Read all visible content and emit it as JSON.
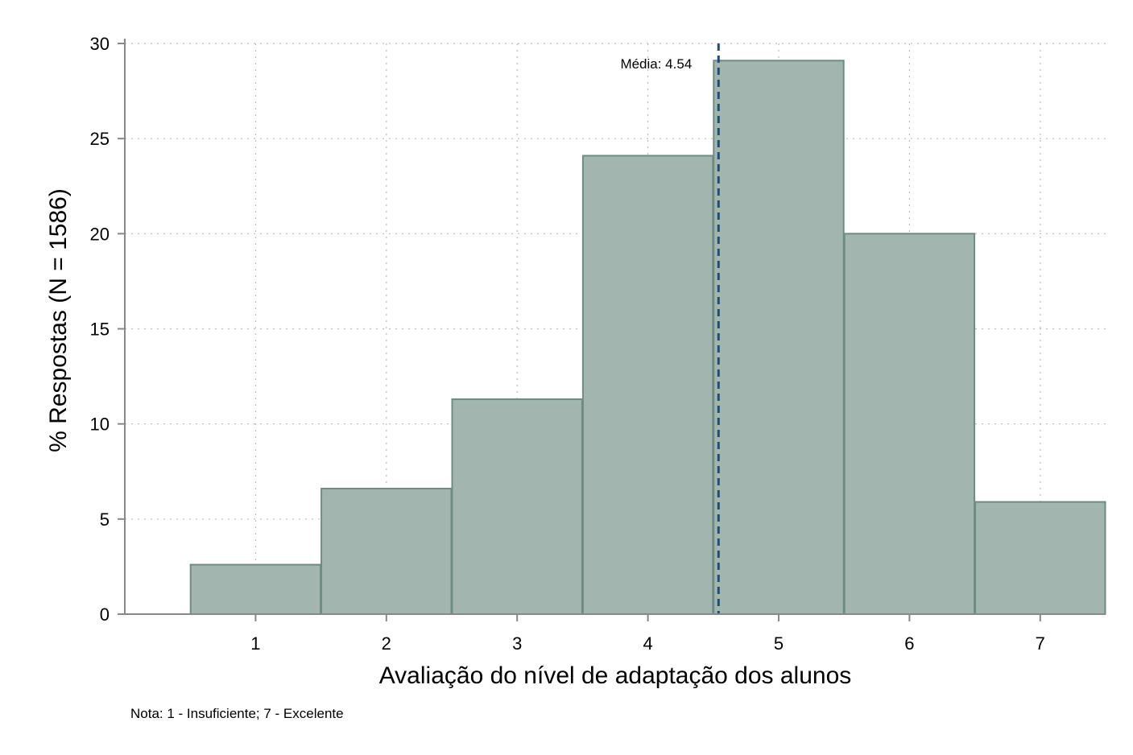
{
  "chart_data": {
    "type": "bar",
    "categories": [
      "1",
      "2",
      "3",
      "4",
      "5",
      "6",
      "7"
    ],
    "x": [
      1,
      2,
      3,
      4,
      5,
      6,
      7
    ],
    "values": [
      2.6,
      6.6,
      11.3,
      24.1,
      29.1,
      20.0,
      5.9
    ],
    "xlabel": "Avaliação do nível de adaptação dos alunos",
    "ylabel": "% Respostas (N = 1586)",
    "xlim": [
      0,
      7.5
    ],
    "ylim": [
      0,
      30
    ],
    "xticks": [
      1,
      2,
      3,
      4,
      5,
      6,
      7
    ],
    "yticks": [
      0,
      5,
      10,
      15,
      20,
      25,
      30
    ],
    "grid": true,
    "mean": {
      "value": 4.54,
      "label": "Média: 4.54"
    },
    "note": "Nota: 1 - Insuficiente; 7 - Excelente",
    "colors": {
      "bar_fill": "#a2b6af",
      "bar_stroke": "#6f8c80",
      "mean_line": "#1f4e79",
      "grid": "#bbbbbb",
      "axis": "#888888"
    }
  }
}
